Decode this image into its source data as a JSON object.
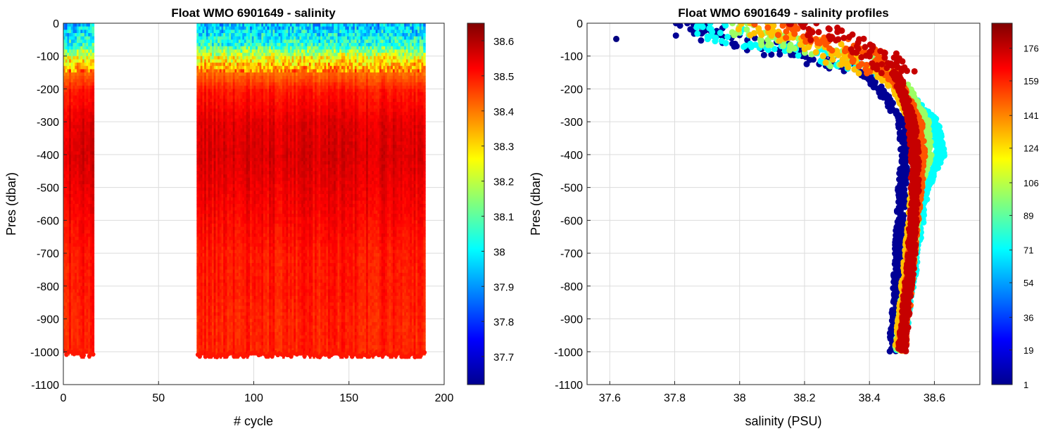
{
  "chart_data": [
    {
      "type": "heatmap",
      "title": "Float WMO 6901649 - salinity",
      "xlabel": "# cycle",
      "ylabel": "Pres (dbar)",
      "xlim": [
        0,
        200
      ],
      "ylim": [
        -1100,
        0
      ],
      "xticks": [
        "0",
        "50",
        "100",
        "150",
        "200"
      ],
      "yticks": [
        "0",
        "-100",
        "-200",
        "-300",
        "-400",
        "-500",
        "-600",
        "-700",
        "-800",
        "-900",
        "-1000",
        "-1100"
      ],
      "grid": true,
      "colormap": "jet",
      "colorbar": {
        "range": [
          37.62,
          38.65
        ],
        "ticks": [
          "37.7",
          "37.8",
          "37.9",
          "38",
          "38.1",
          "38.2",
          "38.3",
          "38.4",
          "38.5",
          "38.6"
        ]
      },
      "cycle_blocks": [
        {
          "from_cycle": 0,
          "to_cycle": 15,
          "max_pres": -1005
        },
        {
          "from_cycle": 70,
          "to_cycle": 189,
          "max_pres": -1008
        }
      ],
      "salinity_profile": {
        "pres": [
          0,
          -30,
          -60,
          -100,
          -150,
          -200,
          -300,
          -400,
          -500,
          -600,
          -700,
          -800,
          -900,
          -1000
        ],
        "salinity": [
          37.95,
          38.0,
          38.05,
          38.25,
          38.42,
          38.5,
          38.55,
          38.56,
          38.54,
          38.52,
          38.5,
          38.5,
          38.49,
          38.49
        ]
      }
    },
    {
      "type": "scatter",
      "title": "Float WMO 6901649 - salinity profiles",
      "xlabel": "salinity (PSU)",
      "ylabel": "Pres (dbar)",
      "xlim": [
        37.53,
        38.74
      ],
      "ylim": [
        -1100,
        0
      ],
      "xticks": [
        "37.6",
        "37.8",
        "38",
        "38.2",
        "38.4",
        "38.6"
      ],
      "yticks": [
        "0",
        "-100",
        "-200",
        "-300",
        "-400",
        "-500",
        "-600",
        "-700",
        "-800",
        "-900",
        "-1000",
        "-1100"
      ],
      "grid": true,
      "colormap": "jet",
      "colorbar": {
        "range": [
          1,
          189
        ],
        "ticks": [
          "1",
          "19",
          "36",
          "54",
          "71",
          "89",
          "106",
          "124",
          "141",
          "159",
          "176"
        ]
      },
      "series": [
        {
          "cycle": 5,
          "pres": [
            -5,
            -30,
            -50,
            -100,
            -150,
            -200,
            -300,
            -400,
            -500,
            -700,
            -900,
            -1000
          ],
          "salinity": [
            37.82,
            37.88,
            37.98,
            38.2,
            38.38,
            38.43,
            38.5,
            38.51,
            38.5,
            38.49,
            38.48,
            38.47
          ]
        },
        {
          "cycle": 72,
          "pres": [
            -5,
            -30,
            -60,
            -100,
            -150,
            -200,
            -300,
            -400,
            -500,
            -700,
            -900,
            -1000
          ],
          "salinity": [
            37.9,
            37.93,
            38.05,
            38.25,
            38.42,
            38.5,
            38.6,
            38.62,
            38.57,
            38.54,
            38.51,
            38.49
          ]
        },
        {
          "cycle": 100,
          "pres": [
            -5,
            -30,
            -60,
            -100,
            -150,
            -200,
            -300,
            -400,
            -500,
            -700,
            -900,
            -1000
          ],
          "salinity": [
            38.0,
            38.05,
            38.12,
            38.3,
            38.45,
            38.52,
            38.57,
            38.58,
            38.55,
            38.53,
            38.5,
            38.49
          ]
        },
        {
          "cycle": 130,
          "pres": [
            -5,
            -30,
            -60,
            -100,
            -150,
            -200,
            -300,
            -400,
            -500,
            -700,
            -900,
            -1000
          ],
          "salinity": [
            38.05,
            38.1,
            38.2,
            38.32,
            38.42,
            38.48,
            38.53,
            38.55,
            38.54,
            38.52,
            38.5,
            38.49
          ]
        },
        {
          "cycle": 150,
          "pres": [
            -5,
            -30,
            -60,
            -100,
            -150,
            -200,
            -300,
            -400,
            -500,
            -700,
            -900,
            -1000
          ],
          "salinity": [
            38.1,
            38.18,
            38.28,
            38.38,
            38.45,
            38.5,
            38.55,
            38.56,
            38.55,
            38.53,
            38.51,
            38.5
          ]
        },
        {
          "cycle": 176,
          "pres": [
            -5,
            -30,
            -60,
            -100,
            -150,
            -200,
            -300,
            -400,
            -500,
            -700,
            -900,
            -1000
          ],
          "salinity": [
            38.15,
            38.25,
            38.35,
            38.45,
            38.48,
            38.5,
            38.53,
            38.54,
            38.54,
            38.53,
            38.51,
            38.5
          ]
        },
        {
          "cycle": 1,
          "pres": [
            -48
          ],
          "salinity": [
            37.62
          ]
        }
      ]
    }
  ]
}
